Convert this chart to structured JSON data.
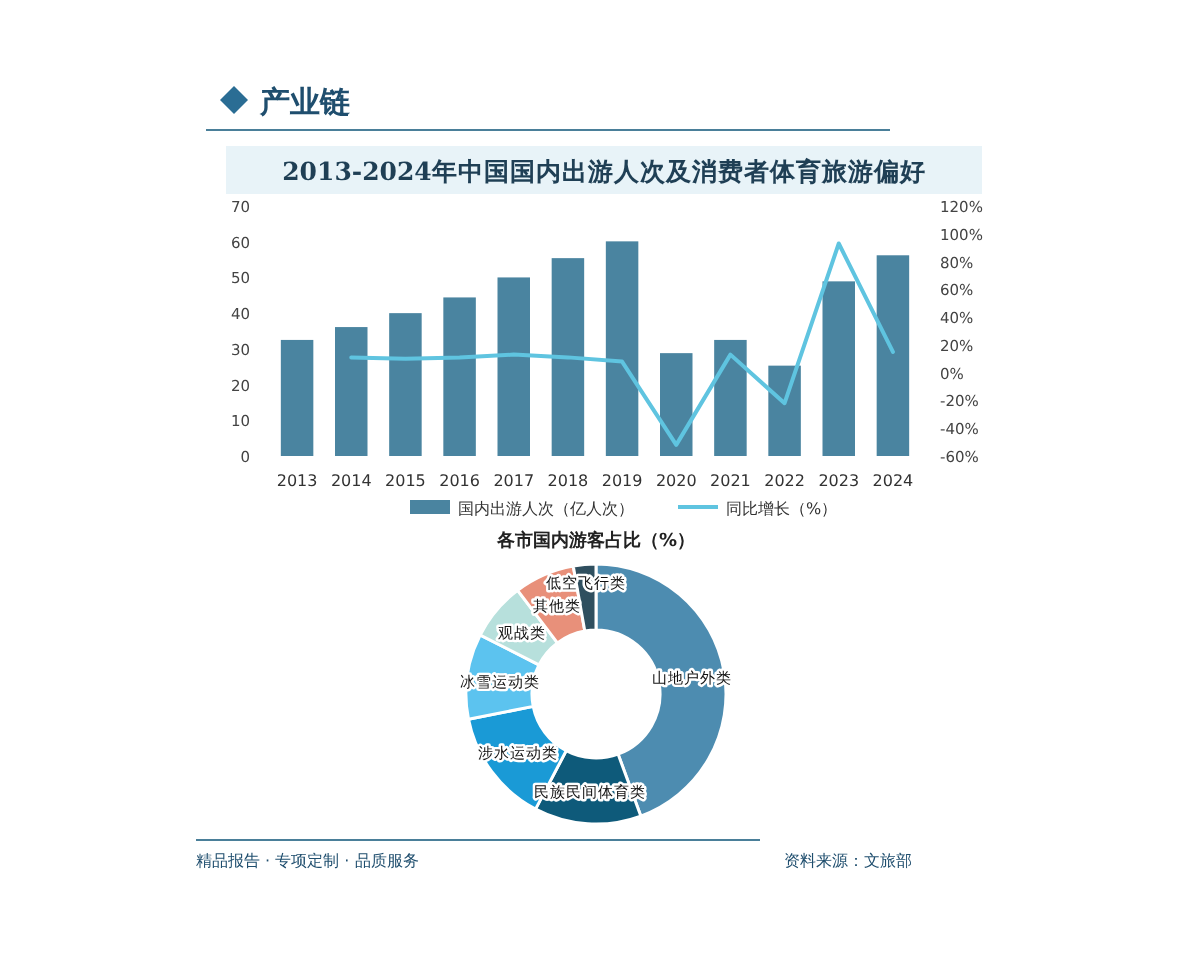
{
  "chart_data": [
    {
      "type": "bar",
      "title": "2013-2024年中国国内出游人次及消费者体育旅游偏好",
      "annotations": [
        "产业链"
      ],
      "categories": [
        "2013",
        "2014",
        "2015",
        "2016",
        "2017",
        "2018",
        "2019",
        "2020",
        "2021",
        "2022",
        "2023",
        "2024"
      ],
      "series": [
        {
          "name": "国内出游人次（亿人次）",
          "type": "bar",
          "color": "#4a84a0",
          "values": [
            32.5,
            36.1,
            40,
            44.4,
            50,
            55.4,
            60.1,
            28.8,
            32.5,
            25.3,
            48.9,
            56.2
          ]
        },
        {
          "name": "同比增长（%）",
          "type": "line",
          "axis": "y2",
          "color": "#5fc4e0",
          "values": [
            null,
            11,
            10,
            11,
            13,
            11,
            8,
            -52,
            13,
            -22,
            93,
            15
          ]
        }
      ],
      "ylim": [
        0,
        70
      ],
      "yticks": [
        0,
        10,
        20,
        30,
        40,
        50,
        60,
        70
      ],
      "y2lim": [
        -60,
        120
      ],
      "y2ticks": [
        {
          "value": -60,
          "label": "-60%"
        },
        {
          "value": -40,
          "label": "-40%"
        },
        {
          "value": -20,
          "label": "-20%"
        },
        {
          "value": 0,
          "label": "0%"
        },
        {
          "value": 20,
          "label": "20%"
        },
        {
          "value": 40,
          "label": "40%"
        },
        {
          "value": 60,
          "label": "60%"
        },
        {
          "value": 80,
          "label": "80%"
        },
        {
          "value": 100,
          "label": "100%"
        },
        {
          "value": 120,
          "label": "120%"
        }
      ],
      "legend": "bottom"
    },
    {
      "type": "donut",
      "title": "各市国内游客占比（%）",
      "categories": [
        "山地户外类",
        "民族民间体育类",
        "涉水运动类",
        "冰雪运动类",
        "观战类",
        "其他类",
        "低空飞行类"
      ],
      "values": [
        44.4,
        13.3,
        14.2,
        10.6,
        7.2,
        7.5,
        2.8
      ],
      "colors": [
        "#4d8cb0",
        "#0e5a7a",
        "#1a9ad6",
        "#5cc3ef",
        "#b7e0dc",
        "#e8907a",
        "#2f4f5f"
      ],
      "annotations": [
        "精品报告 · 专项定制 · 品质服务",
        "资料来源：文旅部"
      ]
    }
  ]
}
